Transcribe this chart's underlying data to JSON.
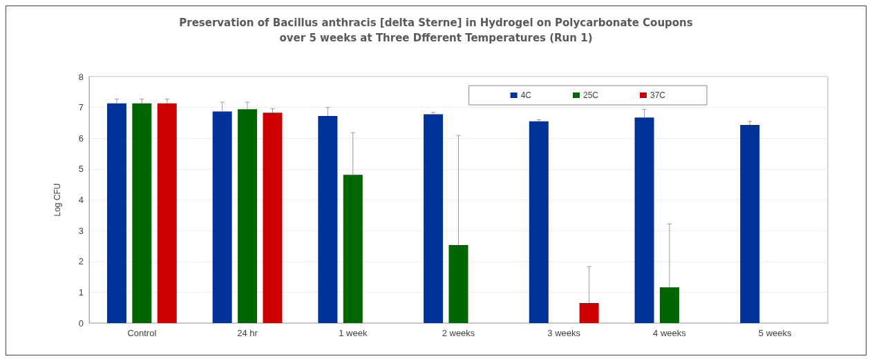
{
  "chart_data": {
    "type": "bar",
    "title": "Preservation of Bacillus anthracis [delta Sterne] in Hydrogel on Polycarbonate Coupons\nover 5 weeks at Three Dfferent Temperatures (Run 1)",
    "ylabel": "Log CFU",
    "categories": [
      "Control",
      "24 hr",
      "1 week",
      "2 weeks",
      "3 weeks",
      "4 weeks",
      "5 weeks"
    ],
    "series": [
      {
        "name": "4C",
        "color": "#003399",
        "values": [
          7.13,
          6.87,
          6.72,
          6.78,
          6.55,
          6.67,
          6.43
        ],
        "errors": [
          [
            7.13,
            7.27
          ],
          [
            6.87,
            7.17
          ],
          [
            6.72,
            7.0
          ],
          [
            6.78,
            6.84
          ],
          [
            6.55,
            6.6
          ],
          [
            6.67,
            6.94
          ],
          [
            6.43,
            6.55
          ]
        ]
      },
      {
        "name": "25C",
        "color": "#006600",
        "values": [
          7.13,
          6.94,
          4.81,
          2.53,
          null,
          1.16,
          null
        ],
        "errors": [
          [
            7.13,
            7.27
          ],
          [
            6.94,
            7.17
          ],
          [
            4.81,
            6.18
          ],
          [
            2.53,
            6.09
          ],
          null,
          [
            1.16,
            3.22
          ],
          null
        ]
      },
      {
        "name": "37C",
        "color": "#cc0000",
        "values": [
          7.13,
          6.83,
          null,
          null,
          0.65,
          null,
          null
        ],
        "errors": [
          [
            7.13,
            7.27
          ],
          [
            6.83,
            6.96
          ],
          null,
          null,
          [
            0.65,
            1.83
          ],
          null,
          null
        ]
      }
    ],
    "ylim": [
      0,
      8
    ],
    "yticks": [
      0,
      1,
      2,
      3,
      4,
      5,
      6,
      7,
      8
    ],
    "grid": "y",
    "legend": "top right"
  }
}
